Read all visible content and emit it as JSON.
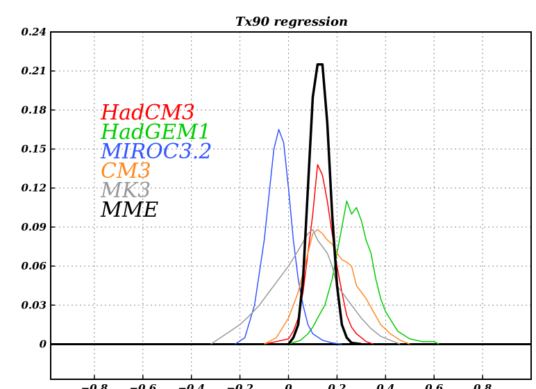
{
  "chart_data": {
    "type": "line",
    "title": "Tx90 regression",
    "xlabel": "",
    "ylabel": "",
    "xlim": [
      -0.98,
      1.0
    ],
    "ylim": [
      -0.027,
      0.24
    ],
    "grid": true,
    "legend_position": "left",
    "x_ticks": [
      -0.8,
      -0.6,
      -0.4,
      -0.2,
      0,
      0.2,
      0.4,
      0.6,
      0.8
    ],
    "x_tick_labels": [
      "−0.8",
      "−0.6",
      "−0.4",
      "−0.2",
      "0",
      "0.2",
      "0.4",
      "0.6",
      "0.8"
    ],
    "y_ticks": [
      0,
      0.03,
      0.06,
      0.09,
      0.12,
      0.15,
      0.18,
      0.21,
      0.24
    ],
    "y_tick_labels": [
      "0",
      "0.03",
      "0.06",
      "0.09",
      "0.12",
      "0.15",
      "0.18",
      "0.21",
      "0.24"
    ],
    "series": [
      {
        "name": "HadCM3",
        "color": "#ff0000",
        "x": [
          -0.1,
          -0.05,
          0.0,
          0.02,
          0.04,
          0.06,
          0.08,
          0.1,
          0.12,
          0.14,
          0.16,
          0.18,
          0.2,
          0.22,
          0.24,
          0.26,
          0.28,
          0.3,
          0.32,
          0.35
        ],
        "y": [
          0,
          0.002,
          0.004,
          0.01,
          0.02,
          0.04,
          0.07,
          0.1,
          0.138,
          0.13,
          0.11,
          0.085,
          0.06,
          0.04,
          0.022,
          0.013,
          0.008,
          0.005,
          0.002,
          0
        ]
      },
      {
        "name": "HadGEM1",
        "color": "#00cc00",
        "x": [
          0.0,
          0.05,
          0.08,
          0.1,
          0.12,
          0.15,
          0.18,
          0.2,
          0.22,
          0.24,
          0.26,
          0.28,
          0.3,
          0.32,
          0.34,
          0.36,
          0.38,
          0.4,
          0.45,
          0.5,
          0.55,
          0.6,
          0.62
        ],
        "y": [
          0,
          0.003,
          0.008,
          0.013,
          0.02,
          0.03,
          0.05,
          0.07,
          0.09,
          0.11,
          0.1,
          0.105,
          0.095,
          0.08,
          0.07,
          0.05,
          0.035,
          0.025,
          0.01,
          0.004,
          0.002,
          0.002,
          0
        ]
      },
      {
        "name": "MIROC3.2",
        "color": "#3355ff",
        "x": [
          -0.22,
          -0.18,
          -0.14,
          -0.1,
          -0.08,
          -0.06,
          -0.04,
          -0.02,
          0.0,
          0.02,
          0.04,
          0.06,
          0.08,
          0.1,
          0.14,
          0.18,
          0.22
        ],
        "y": [
          0,
          0.005,
          0.03,
          0.08,
          0.115,
          0.15,
          0.165,
          0.155,
          0.12,
          0.08,
          0.05,
          0.03,
          0.015,
          0.008,
          0.003,
          0.001,
          0
        ]
      },
      {
        "name": "CM3",
        "color": "#ff8822",
        "x": [
          -0.1,
          -0.05,
          0.0,
          0.04,
          0.06,
          0.08,
          0.1,
          0.12,
          0.14,
          0.16,
          0.18,
          0.2,
          0.22,
          0.24,
          0.26,
          0.28,
          0.3,
          0.32,
          0.35,
          0.38,
          0.42,
          0.46,
          0.5
        ],
        "y": [
          0,
          0.005,
          0.02,
          0.04,
          0.055,
          0.07,
          0.085,
          0.088,
          0.085,
          0.08,
          0.077,
          0.07,
          0.065,
          0.063,
          0.06,
          0.045,
          0.04,
          0.035,
          0.025,
          0.015,
          0.008,
          0.003,
          0
        ]
      },
      {
        "name": "MK3",
        "color": "#999999",
        "x": [
          -0.32,
          -0.28,
          -0.24,
          -0.2,
          -0.16,
          -0.12,
          -0.08,
          -0.04,
          0.0,
          0.04,
          0.08,
          0.1,
          0.12,
          0.14,
          0.16,
          0.18,
          0.2,
          0.22,
          0.24,
          0.26,
          0.28,
          0.3,
          0.34,
          0.38,
          0.42,
          0.46
        ],
        "y": [
          0,
          0.005,
          0.01,
          0.015,
          0.022,
          0.03,
          0.04,
          0.05,
          0.06,
          0.072,
          0.085,
          0.088,
          0.08,
          0.075,
          0.07,
          0.06,
          0.045,
          0.04,
          0.035,
          0.03,
          0.025,
          0.02,
          0.012,
          0.006,
          0.003,
          0
        ]
      },
      {
        "name": "MME",
        "color": "#000000",
        "x": [
          0.0,
          0.02,
          0.04,
          0.06,
          0.08,
          0.1,
          0.12,
          0.14,
          0.16,
          0.18,
          0.2,
          0.22,
          0.24,
          0.26,
          0.3
        ],
        "y": [
          0,
          0.005,
          0.015,
          0.05,
          0.12,
          0.19,
          0.215,
          0.215,
          0.17,
          0.1,
          0.045,
          0.015,
          0.005,
          0.001,
          0
        ]
      }
    ]
  }
}
